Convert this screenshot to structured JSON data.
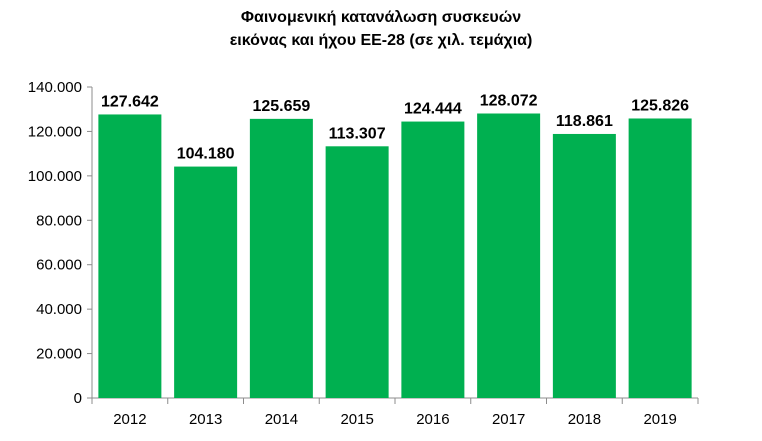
{
  "chart_data": {
    "type": "bar",
    "title_lines": [
      "Φαινομενική κατανάλωση συσκευών",
      "εικόνας και ήχου ΕΕ-28 (σε χιλ. τεμάχια)"
    ],
    "categories": [
      "2012",
      "2013",
      "2014",
      "2015",
      "2016",
      "2017",
      "2018",
      "2019"
    ],
    "values": [
      127642,
      104180,
      125659,
      113307,
      124444,
      128072,
      118861,
      125826
    ],
    "value_labels": [
      "127.642",
      "104.180",
      "125.659",
      "113.307",
      "124.444",
      "128.072",
      "118.861",
      "125.826"
    ],
    "ylim": [
      0,
      140000
    ],
    "y_ticks": [
      0,
      20000,
      40000,
      60000,
      80000,
      100000,
      120000,
      140000
    ],
    "y_tick_labels": [
      "0",
      "20.000",
      "40.000",
      "60.000",
      "80.000",
      "100.000",
      "120.000",
      "140.000"
    ],
    "xlabel": "",
    "ylabel": "",
    "grid": false,
    "legend": "none",
    "bar_color": "#00b050"
  }
}
